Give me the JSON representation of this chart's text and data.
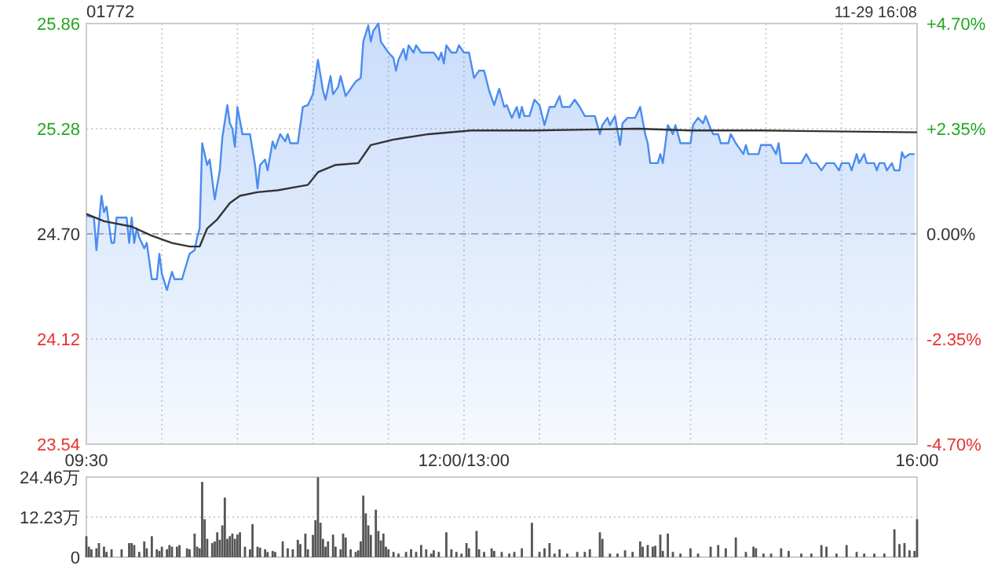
{
  "chart_data": [
    {
      "type": "area",
      "title": "01772",
      "subtitle": "11-29 16:08",
      "categories": [
        "09:30",
        null,
        null,
        null,
        null,
        null,
        null,
        null,
        null,
        null,
        null,
        null,
        null,
        null,
        null,
        null,
        null,
        null,
        null,
        null,
        null,
        null,
        null,
        null,
        null,
        null,
        null,
        null,
        null,
        null,
        null,
        null,
        null,
        null,
        null,
        null,
        null,
        null,
        null,
        null,
        null,
        null,
        null,
        null,
        null,
        null,
        null,
        null,
        null,
        null,
        null,
        null,
        null,
        null,
        null,
        null,
        null,
        null,
        null,
        null,
        null,
        null,
        null,
        null,
        null,
        null,
        null,
        null,
        null,
        null,
        null,
        null,
        null,
        null,
        null,
        null,
        null,
        null,
        null,
        null,
        null,
        null,
        null,
        null,
        null,
        null,
        null,
        null,
        null,
        null,
        null,
        null,
        null,
        null,
        null,
        null,
        null,
        null,
        null,
        null,
        null,
        null,
        null,
        null,
        null,
        null,
        null,
        null,
        null,
        null,
        null,
        null,
        null,
        null,
        null,
        null,
        null,
        null,
        null,
        null,
        null,
        null,
        null,
        null,
        null,
        null,
        null,
        null,
        null,
        null,
        null,
        null,
        null,
        null,
        null,
        null,
        null,
        null,
        null,
        null,
        null,
        null,
        null,
        null,
        null,
        null,
        null,
        null,
        null,
        null,
        "12:00/13:00",
        null,
        null,
        null,
        null,
        null,
        null,
        null,
        null,
        null,
        null,
        null,
        null,
        null,
        null,
        null,
        null,
        null,
        null,
        null,
        null,
        null,
        null,
        null,
        null,
        null,
        null,
        null,
        null,
        null,
        null,
        null,
        null,
        null,
        null,
        null,
        null,
        null,
        null,
        null,
        null,
        null,
        null,
        null,
        null,
        null,
        null,
        null,
        null,
        null,
        null,
        null,
        null,
        null,
        null,
        null,
        null,
        null,
        null,
        null,
        null,
        null,
        null,
        null,
        null,
        null,
        null,
        null,
        null,
        null,
        null,
        null,
        null,
        null,
        null,
        null,
        null,
        null,
        null,
        null,
        null,
        null,
        null,
        null,
        null,
        null,
        null,
        null,
        null,
        null,
        null,
        null,
        null,
        null,
        null,
        null,
        null,
        null,
        null,
        null,
        null,
        null,
        null,
        null,
        null,
        null,
        null,
        null,
        null,
        null,
        null,
        null,
        null,
        null,
        null,
        null,
        null,
        null,
        null,
        null,
        null,
        null,
        null,
        null,
        null,
        null,
        null,
        null,
        null,
        null,
        null,
        null,
        null,
        null,
        null,
        null,
        null,
        null,
        null,
        null,
        null,
        null,
        null,
        null,
        null,
        null,
        null,
        null,
        null,
        null,
        null,
        null,
        null,
        null,
        null,
        null,
        null,
        null,
        null,
        null,
        null,
        null,
        null,
        null,
        null,
        null,
        null,
        null,
        null,
        null,
        null,
        null,
        null,
        null,
        null,
        null,
        null,
        null,
        null,
        null,
        "16:00"
      ],
      "ylim": [
        23.54,
        25.86
      ],
      "yticks": [
        23.54,
        24.12,
        {
          "value": 24.7,
          "label": "24.70"
        },
        25.28,
        25.86
      ],
      "y2lim": [
        -4.7,
        4.7
      ],
      "y2ticks": [
        {
          "value": -4.7,
          "label": "-4.70%"
        },
        {
          "value": -2.35,
          "label": "-2.35%"
        },
        {
          "value": 0,
          "label": "0.00%"
        },
        {
          "value": 2.35,
          "label": "+2.35%"
        },
        {
          "value": 4.7,
          "label": "+4.70%"
        }
      ],
      "grid": true,
      "ref_lines": [
        {
          "axis": "y",
          "value": 24.7,
          "line_style": "dashed",
          "color": "#aaaaaa"
        }
      ],
      "series": [
        {
          "color": "#4a8cf0",
          "values": [
            24.8,
            null,
            null,
            24.79,
            24.61,
            null,
            24.91,
            24.82,
            24.85,
            null,
            24.65,
            24.65,
            24.79,
            null,
            null,
            24.79,
            24.79,
            24.65,
            24.79,
            24.65,
            24.73,
            24.68,
            null,
            24.62,
            24.65,
            null,
            24.45,
            null,
            24.45,
            24.59,
            24.48,
            null,
            24.39,
            null,
            24.49,
            24.45,
            null,
            null,
            24.45,
            null,
            null,
            24.59,
            null,
            24.61,
            24.68,
            24.73,
            25.2,
            null,
            25.08,
            25.11,
            null,
            24.89,
            null,
            25.05,
            25.23,
            null,
            25.41,
            25.31,
            25.28,
            25.18,
            25.4,
            null,
            25.25,
            null,
            null,
            25.25,
            null,
            25.08,
            24.95,
            25.08,
            null,
            25.11,
            25.05,
            null,
            25.21,
            25.17,
            null,
            25.25,
            null,
            25.21,
            25.25,
            25.2,
            null,
            null,
            25.2,
            null,
            25.4,
            null,
            25.41,
            null,
            25.47,
            null,
            25.66,
            null,
            25.49,
            25.44,
            null,
            25.57,
            25.47,
            null,
            25.51,
            25.57,
            null,
            25.46,
            null,
            25.5,
            null,
            25.54,
            null,
            25.56,
            25.76,
            null,
            25.85,
            25.76,
            25.82,
            null,
            25.86,
            25.76,
            null,
            null,
            25.7,
            null,
            25.67,
            25.6,
            25.66,
            null,
            25.72,
            25.66,
            25.74,
            null,
            25.7,
            25.74,
            null,
            25.7,
            null,
            null,
            null,
            null,
            25.7,
            null,
            25.66,
            25.7,
            25.64,
            25.74,
            null,
            25.7,
            null,
            25.7,
            25.74,
            null,
            25.7,
            null,
            25.7,
            null,
            25.56,
            null,
            25.6,
            null,
            25.6,
            null,
            25.49,
            null,
            25.41,
            null,
            25.5,
            null,
            25.4,
            25.41,
            null,
            25.34,
            null,
            25.4,
            25.34,
            25.4,
            25.35,
            null,
            25.35,
            null,
            25.44,
            null,
            25.41,
            null,
            25.3,
            null,
            25.4,
            null,
            25.4,
            null,
            25.46,
            25.4,
            null,
            null,
            25.4,
            null,
            25.44,
            null,
            25.4,
            null,
            25.35,
            null,
            null,
            null,
            25.35,
            null,
            25.25,
            25.3,
            null,
            25.34,
            25.3,
            null,
            25.35,
            null,
            25.19,
            25.31,
            null,
            25.34,
            null,
            null,
            25.34,
            null,
            25.4,
            null,
            25.25,
            25.2,
            25.09,
            null,
            null,
            25.09,
            25.14,
            25.09,
            null,
            25.3,
            null,
            25.25,
            25.3,
            null,
            25.2,
            null,
            null,
            null,
            25.2,
            25.3,
            null,
            25.34,
            null,
            25.31,
            25.35,
            null,
            25.28,
            25.25,
            null,
            25.25,
            25.2,
            null,
            null,
            25.2,
            25.25,
            null,
            25.2,
            25.18,
            null,
            25.14,
            25.19,
            25.14,
            null,
            null,
            null,
            25.14,
            25.19,
            null,
            null,
            null,
            25.19,
            null,
            25.14,
            25.2,
            25.09,
            null,
            null,
            null,
            null,
            null,
            null,
            null,
            25.09,
            null,
            25.14,
            null,
            25.09,
            null,
            25.09,
            null,
            25.05,
            null,
            25.09,
            null,
            null,
            25.09,
            null,
            25.05,
            25.09,
            null,
            null,
            25.09,
            25.05,
            null,
            25.14,
            25.09,
            null,
            25.14,
            25.09,
            null,
            null,
            25.09,
            25.05,
            25.09,
            null,
            25.09,
            25.05,
            null,
            25.09,
            25.05,
            null,
            25.05,
            25.15,
            25.12,
            null,
            25.14,
            null,
            25.14,
            null
          ]
        },
        {
          "type": "line",
          "color": "#333333",
          "values": [
            24.81,
            null,
            null,
            null,
            null,
            null,
            null,
            24.77,
            null,
            null,
            null,
            null,
            null,
            null,
            null,
            null,
            null,
            null,
            24.74,
            null,
            null,
            null,
            null,
            null,
            null,
            null,
            24.69,
            null,
            null,
            null,
            null,
            null,
            null,
            null,
            24.65,
            null,
            null,
            null,
            null,
            null,
            null,
            24.63,
            null,
            null,
            null,
            24.63,
            null,
            null,
            24.73,
            null,
            null,
            null,
            24.78,
            null,
            null,
            null,
            null,
            24.87,
            null,
            null,
            null,
            24.91,
            null,
            null,
            null,
            null,
            null,
            null,
            24.93,
            null,
            null,
            null,
            null,
            null,
            null,
            null,
            24.94,
            null,
            null,
            null,
            null,
            null,
            null,
            null,
            24.96,
            null,
            null,
            null,
            24.97,
            null,
            null,
            null,
            25.04,
            null,
            null,
            null,
            null,
            null,
            null,
            25.08,
            null,
            null,
            null,
            null,
            null,
            null,
            null,
            null,
            25.09,
            null,
            null,
            null,
            null,
            25.19,
            null,
            null,
            null,
            null,
            null,
            null,
            null,
            null,
            25.22,
            null,
            null,
            null,
            null,
            null,
            null,
            null,
            null,
            null,
            null,
            null,
            null,
            null,
            25.25,
            null,
            null,
            null,
            null,
            null,
            null,
            null,
            null,
            null,
            null,
            null,
            null,
            null,
            null,
            null,
            null,
            25.27,
            null,
            null,
            null,
            null,
            null,
            null,
            null,
            null,
            null,
            null,
            null,
            null,
            null,
            null,
            null,
            null,
            null,
            null,
            null,
            null,
            null,
            null,
            null,
            null,
            25.27,
            null,
            null,
            null,
            null,
            null,
            null,
            null,
            null,
            null,
            null,
            null,
            null,
            null,
            null,
            null,
            null,
            null,
            null,
            null,
            null,
            null,
            null,
            null,
            null,
            null,
            null,
            null,
            null,
            null,
            null,
            null,
            null,
            null,
            null,
            null,
            null,
            null,
            null,
            null,
            null,
            25.28,
            null,
            null,
            null,
            null,
            null,
            null,
            null,
            null,
            null,
            null,
            null,
            null,
            null,
            null,
            null,
            null,
            null,
            null,
            null,
            null,
            25.27,
            null,
            null,
            null,
            null,
            null,
            null,
            null,
            null,
            null,
            null,
            null,
            null,
            null,
            null,
            null,
            null,
            null,
            null,
            null,
            null,
            null,
            null,
            null,
            null,
            null,
            null,
            null,
            null,
            25.27,
            null,
            null,
            null,
            null,
            null,
            null,
            null,
            null,
            null,
            null,
            null,
            null,
            null,
            null,
            null,
            null,
            null,
            null,
            null,
            null,
            null,
            null,
            null,
            null,
            null,
            null,
            null,
            null,
            null,
            null,
            null,
            null,
            null,
            null,
            null,
            null,
            null,
            null,
            null,
            null,
            null,
            null,
            null,
            null,
            null,
            null,
            null,
            null,
            null,
            null,
            null,
            null,
            null,
            null,
            null,
            null,
            null,
            null,
            null,
            null,
            25.26
          ]
        }
      ]
    },
    {
      "type": "bar",
      "ylim": [
        0,
        24.46
      ],
      "categories": [
        null,
        null,
        null,
        null,
        null,
        null,
        null,
        null,
        null,
        null,
        null,
        null,
        null,
        null,
        null,
        null,
        null,
        null,
        null,
        null,
        null,
        null,
        null,
        null,
        null,
        null,
        null,
        null,
        null,
        null,
        null,
        null,
        null,
        null,
        null,
        null,
        null,
        null,
        null,
        null,
        null,
        null,
        null,
        null,
        null,
        null,
        null,
        null,
        null,
        null,
        null,
        null,
        null,
        null,
        null,
        null,
        null,
        null,
        null,
        null,
        null,
        null,
        null,
        null,
        null,
        null,
        null,
        null,
        null,
        null,
        null,
        null,
        null,
        null,
        null,
        null,
        null,
        null,
        null,
        null,
        null,
        null,
        null,
        null,
        null,
        null,
        null,
        null,
        null,
        null,
        null,
        null,
        null,
        null,
        null,
        null,
        null,
        null,
        null,
        null,
        null,
        null,
        null,
        null,
        null,
        null,
        null,
        null,
        null,
        null,
        null,
        null,
        null,
        null,
        null,
        null,
        null,
        null,
        null,
        null,
        null,
        null,
        null,
        null,
        null,
        null,
        null,
        null,
        null,
        null,
        null,
        null,
        null,
        null,
        null,
        null,
        null,
        null,
        null,
        null,
        null,
        null,
        null,
        null,
        null,
        null,
        null,
        null,
        null,
        null,
        null,
        null,
        null,
        null,
        null,
        null,
        null,
        null,
        null,
        null,
        null,
        null,
        null,
        null,
        null,
        null,
        null,
        null,
        null,
        null,
        null,
        null,
        null,
        null,
        null,
        null,
        null,
        null,
        null,
        null,
        null,
        null,
        null,
        null,
        null,
        null,
        null,
        null,
        null,
        null,
        null,
        null,
        null,
        null,
        null,
        null,
        null,
        null,
        null,
        null,
        null,
        null,
        null,
        null,
        null,
        null,
        null,
        null,
        null,
        null,
        null,
        null,
        null,
        null,
        null,
        null,
        null,
        null,
        null,
        null,
        null,
        null,
        null,
        null,
        null,
        null,
        null,
        null,
        null,
        null,
        null,
        null,
        null,
        null,
        null,
        null,
        null,
        null,
        null,
        null,
        null,
        null,
        null,
        null,
        null,
        null,
        null,
        null,
        null,
        null,
        null,
        null,
        null,
        null,
        null,
        null,
        null,
        null,
        null,
        null,
        null,
        null,
        null,
        null,
        null,
        null,
        null,
        null,
        null,
        null,
        null,
        null,
        null,
        null,
        null,
        null,
        null,
        null,
        null,
        null,
        null,
        null,
        null,
        null,
        null,
        null,
        null,
        null,
        null,
        null,
        null,
        null,
        null,
        null,
        null,
        null,
        null,
        null,
        null,
        null,
        null,
        null,
        null,
        null,
        null,
        null,
        null,
        null,
        null,
        null,
        null,
        null,
        null,
        null,
        null,
        null,
        null,
        null,
        null,
        null,
        null,
        null,
        null,
        null,
        null,
        null,
        null,
        null,
        null,
        null,
        null
      ],
      "yticks": [
        0,
        {
          "value": 12.23,
          "label": "12.23万"
        },
        {
          "value": 24.46,
          "label": "24.46万"
        }
      ],
      "tick_labels": "y",
      "grid": "y",
      "series": [
        {
          "color": "#555555",
          "values": [
            6.4,
            3.2,
            2.4,
            null,
            2.7,
            4.3,
            null,
            3.2,
            1.6,
            null,
            2.4,
            null,
            null,
            null,
            2.4,
            null,
            null,
            4.3,
            4.3,
            3.7,
            null,
            1.6,
            null,
            4.8,
            2.7,
            null,
            6.4,
            null,
            2.4,
            1.9,
            3.2,
            null,
            2.4,
            3.7,
            3.2,
            null,
            3.2,
            3.7,
            null,
            null,
            2.7,
            2.4,
            null,
            7.2,
            3.2,
            2.7,
            23.0,
            11.6,
            5.6,
            null,
            4.3,
            4.8,
            7.6,
            5.3,
            9.7,
            18.2,
            5.6,
            6.4,
            7.2,
            5.6,
            6.9,
            7.6,
            null,
            3.2,
            null,
            2.4,
            10.1,
            null,
            3.2,
            2.9,
            null,
            2.4,
            1.6,
            null,
            1.9,
            1.6,
            null,
            null,
            4.8,
            null,
            2.7,
            null,
            2.4,
            null,
            5.3,
            4.0,
            null,
            7.2,
            2.4,
            null,
            6.8,
            11.3,
            24.4,
            10.5,
            5.6,
            3.2,
            4.8,
            null,
            6.9,
            3.2,
            null,
            2.4,
            7.2,
            6.0,
            null,
            2.4,
            null,
            1.6,
            2.1,
            4.8,
            18.8,
            13.4,
            9.7,
            6.8,
            null,
            14.5,
            8.0,
            5.1,
            7.2,
            3.2,
            2.4,
            null,
            1.6,
            null,
            1.1,
            null,
            null,
            1.6,
            null,
            2.4,
            null,
            1.6,
            null,
            3.7,
            null,
            2.4,
            null,
            1.1,
            2.1,
            null,
            1.6,
            null,
            null,
            7.6,
            null,
            2.4,
            null,
            1.6,
            null,
            1.1,
            null,
            4.3,
            2.7,
            null,
            null,
            8.0,
            2.4,
            null,
            1.6,
            null,
            null,
            2.7,
            1.9,
            null,
            null,
            1.6,
            null,
            null,
            1.1,
            null,
            1.6,
            null,
            null,
            2.7,
            null,
            null,
            null,
            10.5,
            null,
            null,
            1.6,
            null,
            2.7,
            null,
            4.3,
            null,
            1.1,
            null,
            2.4,
            null,
            null,
            1.1,
            null,
            null,
            null,
            1.6,
            null,
            null,
            1.6,
            null,
            2.4,
            null,
            null,
            null,
            7.6,
            5.6,
            null,
            null,
            1.1,
            null,
            null,
            1.1,
            null,
            null,
            2.1,
            null,
            null,
            1.6,
            null,
            null,
            4.8,
            3.2,
            null,
            3.7,
            null,
            3.2,
            3.5,
            null,
            6.9,
            1.9,
            null,
            7.2,
            null,
            1.6,
            null,
            null,
            1.1,
            null,
            null,
            null,
            2.7,
            null,
            null,
            1.1,
            null,
            null,
            null,
            null,
            3.2,
            null,
            null,
            3.7,
            null,
            null,
            2.7,
            null,
            null,
            null,
            6.0,
            null,
            null,
            null,
            1.6,
            null,
            null,
            3.2,
            2.7,
            null,
            null,
            1.1,
            null,
            null,
            1.1,
            null,
            null,
            null,
            2.7,
            null,
            null,
            1.9,
            null,
            null,
            null,
            null,
            1.1,
            null,
            null,
            null,
            1.1,
            null,
            null,
            null,
            3.7,
            null,
            3.2,
            null,
            null,
            null,
            1.1,
            null,
            null,
            null,
            3.7,
            null,
            null,
            null,
            1.6,
            null,
            null,
            1.1,
            null,
            null,
            null,
            1.1,
            null,
            null,
            null,
            1.1,
            null,
            null,
            null,
            8.5,
            null,
            4.0,
            null,
            4.3,
            null,
            2.1,
            null,
            1.9,
            11.6
          ]
        }
      ]
    }
  ]
}
